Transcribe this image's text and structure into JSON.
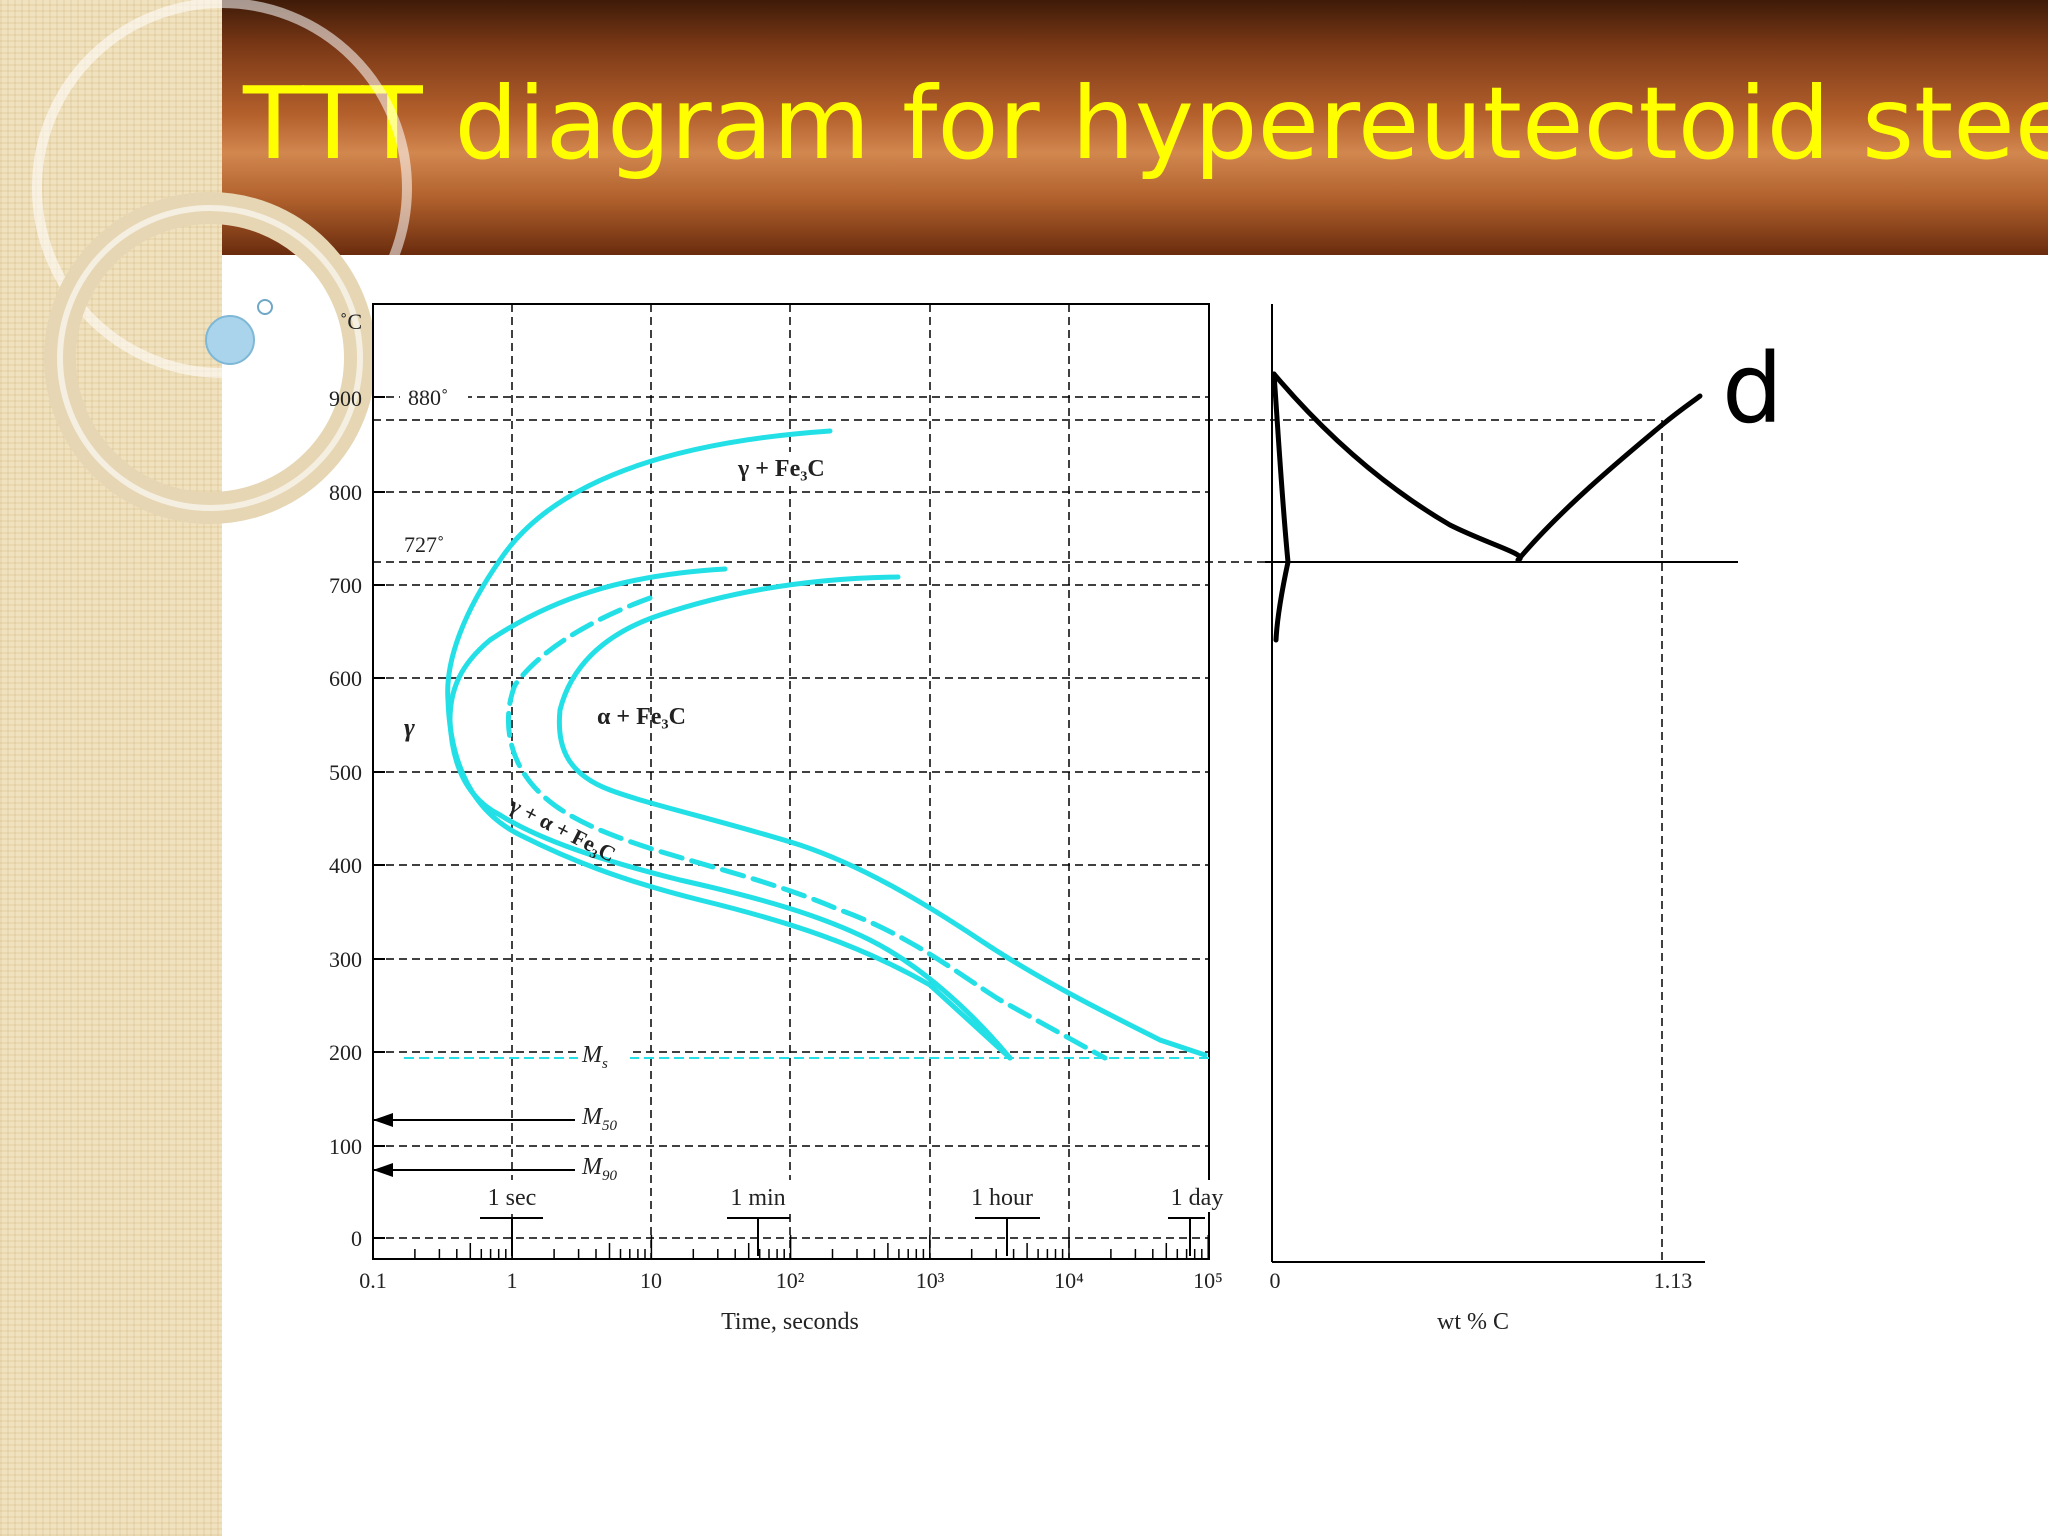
{
  "slide": {
    "title": "TTT diagram for hypereutectoid steel",
    "partial_text": "d"
  },
  "colors": {
    "title_text": "#ffff00",
    "curve": "#22e0e6",
    "grid": "#000000"
  },
  "ttt": {
    "y_unit": "˚C",
    "y_ticks": [
      "900",
      "800",
      "700",
      "600",
      "500",
      "400",
      "300",
      "200",
      "100",
      "0"
    ],
    "x_ticks": [
      "0.1",
      "1",
      "10",
      "10²",
      "10³",
      "10⁴",
      "10⁵"
    ],
    "xlabel": "Time, seconds",
    "temp_880_label": "880˚",
    "temp_727_label": "727˚",
    "regions": {
      "gamma": "γ",
      "gamma_fe3c": "γ + Fe₃C",
      "alpha_fe3c": "α + Fe₃C",
      "gamma_alpha_fe3c": "γ + α + Fe₃C"
    },
    "martensite": {
      "ms": "M",
      "ms_sub": "s",
      "m50": "M",
      "m50_sub": "50",
      "m90": "M",
      "m90_sub": "90"
    },
    "time_markers": [
      "1 sec",
      "1 min",
      "1 hour",
      "1 day"
    ]
  },
  "phase": {
    "x_ticks": [
      "0",
      "1.13"
    ],
    "xlabel": "wt % C"
  }
}
